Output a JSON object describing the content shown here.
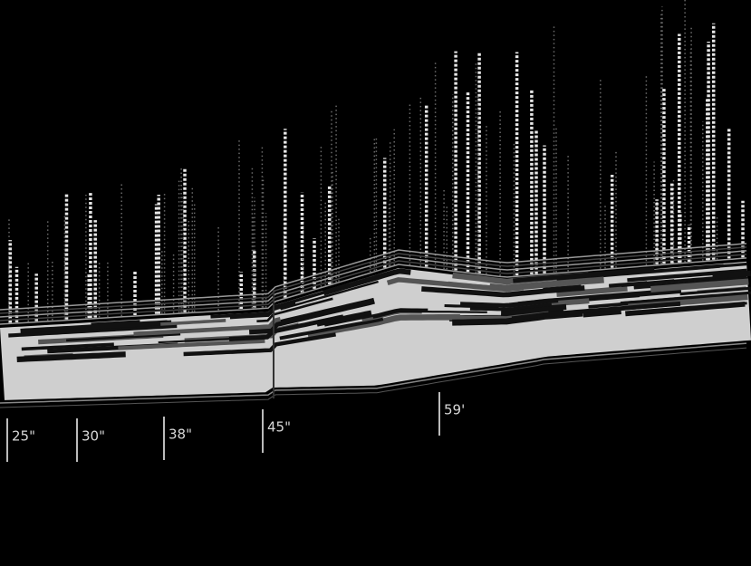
{
  "depth_labels": [
    "25\"",
    "30\"",
    "38\"",
    "45\"",
    "59'"
  ]
}
